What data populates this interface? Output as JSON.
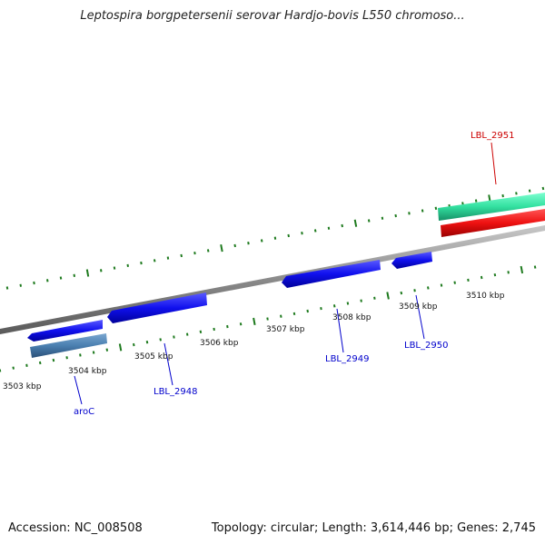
{
  "title": "Leptospira borgpetersenii serovar Hardjo-bovis L550 chromoso...",
  "footer": {
    "accession": "Accession: NC_008508",
    "summary": "Topology: circular; Length: 3,614,446 bp; Genes: 2,745"
  },
  "ticks": [
    "3503 kbp",
    "3504 kbp",
    "3505 kbp",
    "3506 kbp",
    "3507 kbp",
    "3508 kbp",
    "3509 kbp",
    "3510 kbp"
  ],
  "genes": [
    {
      "label": "aroC",
      "color": "#0000cc"
    },
    {
      "label": "LBL_2948",
      "color": "#0000cc"
    },
    {
      "label": "LBL_2949",
      "color": "#0000cc"
    },
    {
      "label": "LBL_2950",
      "color": "#0000cc"
    },
    {
      "label": "LBL_2951",
      "color": "#cc0000"
    }
  ],
  "colors": {
    "forward_gene": "#1010ee",
    "reverse_gene_blue": "#4a7fb0",
    "reverse_gene_red": "#ee1111",
    "forward_gene_green": "#33e0a0",
    "backbone": "#8a8a8a",
    "tick_marks": "#1e7a1e"
  }
}
